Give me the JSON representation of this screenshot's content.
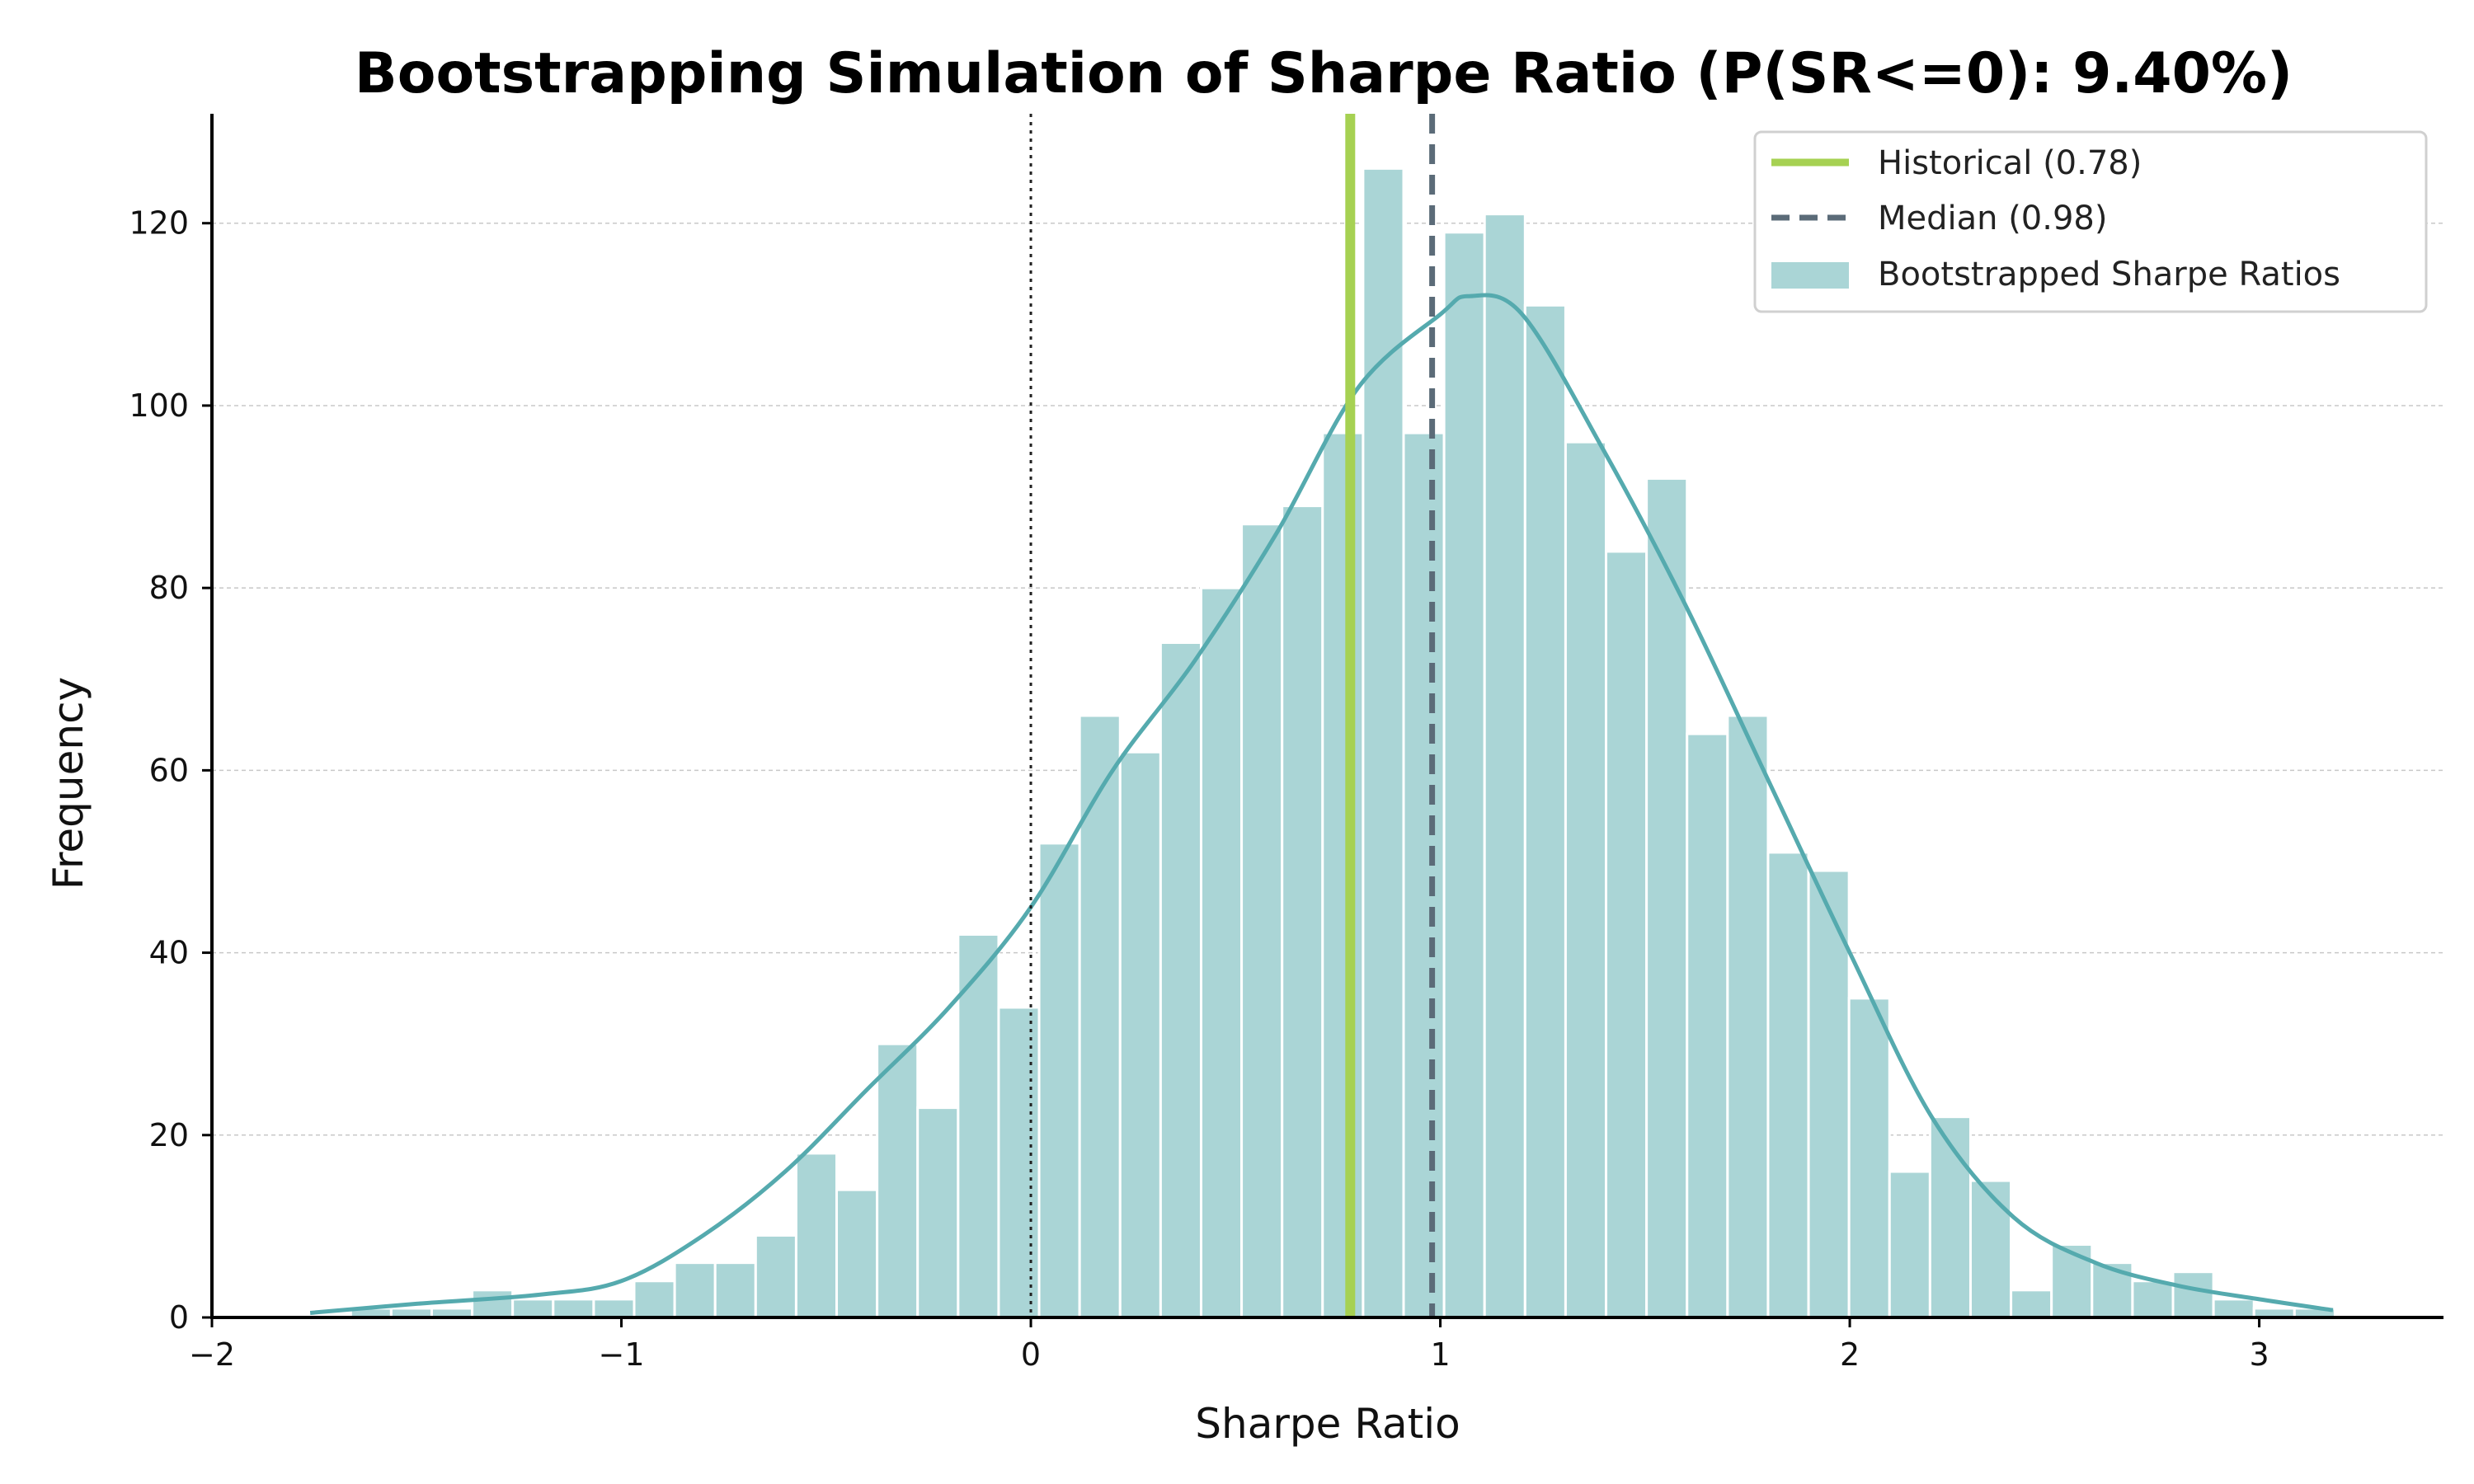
{
  "chart_data": {
    "type": "bar",
    "title": "Bootstrapping Simulation of Sharpe Ratio (P(SR<=0): 9.40%)",
    "xlabel": "Sharpe Ratio",
    "ylabel": "Frequency",
    "xlim": [
      -2,
      3.45
    ],
    "ylim": [
      0,
      132
    ],
    "x_ticks": [
      -2,
      -1,
      0,
      1,
      2,
      3
    ],
    "x_tick_labels": [
      "−2",
      "−1",
      "0",
      "1",
      "2",
      "3"
    ],
    "y_ticks": [
      0,
      20,
      40,
      60,
      80,
      100,
      120
    ],
    "y_tick_labels": [
      "0",
      "20",
      "40",
      "60",
      "80",
      "100",
      "120"
    ],
    "grid": "y-dashed",
    "legend_position": "top-right",
    "bin_start": -1.76,
    "bin_width": 0.0989,
    "bin_counts": [
      0,
      1,
      1,
      1,
      3,
      2,
      2,
      2,
      4,
      6,
      6,
      9,
      18,
      14,
      30,
      23,
      42,
      34,
      52,
      66,
      62,
      74,
      80,
      87,
      89,
      97,
      126,
      97,
      119,
      121,
      111,
      96,
      84,
      92,
      64,
      66,
      51,
      49,
      35,
      16,
      22,
      15,
      3,
      8,
      6,
      4,
      5,
      2,
      1,
      1
    ],
    "kde": {
      "x": [
        -1.76,
        -1.5,
        -1.2,
        -1.0,
        -0.8,
        -0.6,
        -0.4,
        -0.2,
        0.0,
        0.2,
        0.4,
        0.6,
        0.8,
        1.0,
        1.07,
        1.2,
        1.4,
        1.6,
        1.8,
        2.0,
        2.2,
        2.4,
        2.6,
        2.8,
        3.0,
        3.18
      ],
      "y": [
        0.5,
        1.5,
        2.5,
        4,
        9,
        16,
        25,
        34,
        45,
        60,
        72,
        86,
        102,
        110,
        112,
        110,
        95,
        78,
        59,
        40,
        22,
        11,
        6,
        3.5,
        2,
        0.8
      ]
    },
    "historical_line": {
      "label": "Historical (0.78)",
      "value": 0.78
    },
    "median_line": {
      "label": "Median (0.98)",
      "value": 0.98
    },
    "zero_line": {
      "value": 0
    },
    "bars_label": "Bootstrapped Sharpe Ratios",
    "colors": {
      "bars": "#aad5d6",
      "bar_edge": "#ffffff",
      "kde": "#55aaae",
      "historical": "#a6d152",
      "median": "#5b6b78",
      "zero": "#222222",
      "grid": "#c8c8c8"
    }
  }
}
